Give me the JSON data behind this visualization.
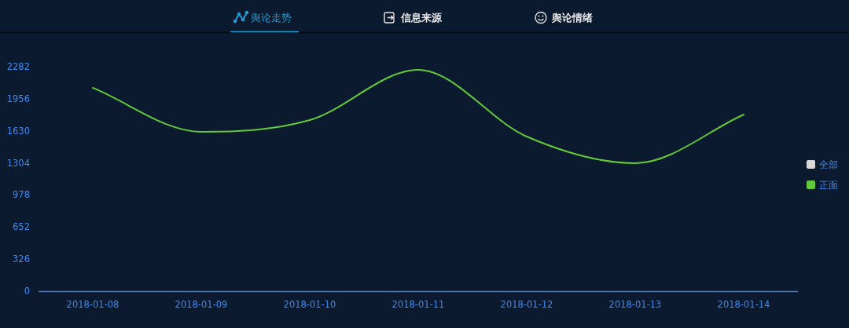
{
  "chart_data": {
    "type": "line",
    "title": "舆论走势",
    "annotations": [
      "信息来源",
      "舆论情绪"
    ],
    "categories": [
      "2018-01-08",
      "2018-01-09",
      "2018-01-10",
      "2018-01-11",
      "2018-01-12",
      "2018-01-13",
      "2018-01-14"
    ],
    "series": [
      {
        "name": "全部",
        "color": "#d9d9d9",
        "values": [
          null,
          null,
          null,
          null,
          null,
          null,
          null
        ]
      },
      {
        "name": "正面",
        "color": "#62c93a",
        "values": [
          2067,
          1620,
          1739,
          2250,
          1572,
          1301,
          1795
        ]
      }
    ],
    "ylim": [
      0,
      2282
    ],
    "yticks": [
      0,
      326,
      652,
      978,
      1304,
      1630,
      1956,
      2282
    ],
    "legend": "right",
    "marker": "none",
    "line_style": "solid",
    "grid": false
  }
}
